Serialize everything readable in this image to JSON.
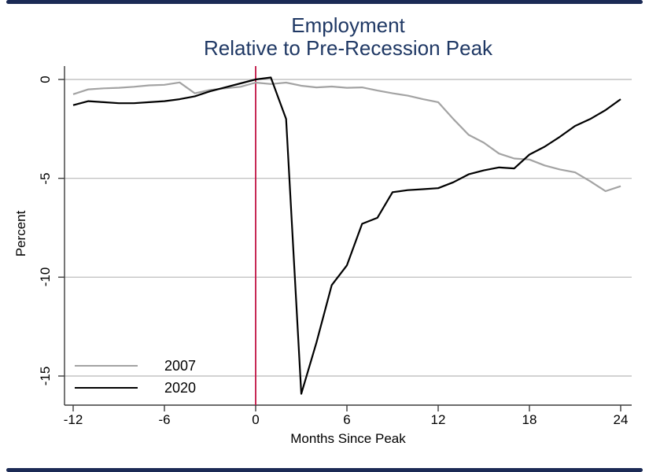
{
  "figure": {
    "title_line1": "Employment",
    "title_line2": "Relative to Pre-Recession Peak",
    "title_color": "#1F3864",
    "border_color": "#1B2A55",
    "background": "#FFFFFF"
  },
  "axes": {
    "x": {
      "label": "Months Since Peak",
      "tick_labels": [
        "-12",
        "-6",
        "0",
        "6",
        "12",
        "18",
        "24"
      ]
    },
    "y": {
      "label": "Percent",
      "tick_labels": [
        "0",
        "-5",
        "-10",
        "-15"
      ]
    }
  },
  "legend": {
    "items": [
      {
        "label": "2007",
        "color": "#A3A3A3"
      },
      {
        "label": "2020",
        "color": "#000000"
      }
    ]
  },
  "colors": {
    "gridline": "#B8B8B8",
    "axis": "#3C3C3C",
    "reference_line": "#C11243"
  },
  "chart_data": {
    "type": "line",
    "title": "Employment Relative to Pre-Recession Peak",
    "xlabel": "Months Since Peak",
    "ylabel": "Percent",
    "xlim": [
      -12.6,
      24.8
    ],
    "ylim": [
      -16.6,
      0.65
    ],
    "xticks": [
      -12,
      -6,
      0,
      6,
      12,
      18,
      24
    ],
    "yticks": [
      0,
      -5,
      -10,
      -15
    ],
    "grid": "horizontal",
    "legend_position": "bottom-left",
    "reference_line_x": 0,
    "x": [
      -12,
      -11,
      -10,
      -9,
      -8,
      -7,
      -6,
      -5,
      -4,
      -3,
      -2,
      -1,
      0,
      1,
      2,
      3,
      4,
      5,
      6,
      7,
      8,
      9,
      10,
      11,
      12,
      13,
      14,
      15,
      16,
      17,
      18,
      19,
      20,
      21,
      22,
      23,
      24
    ],
    "series": [
      {
        "name": "2007",
        "color": "#A3A3A3",
        "values": [
          -0.75,
          -0.5,
          -0.45,
          -0.42,
          -0.37,
          -0.3,
          -0.27,
          -0.15,
          -0.7,
          -0.53,
          -0.45,
          -0.37,
          -0.16,
          -0.23,
          -0.16,
          -0.32,
          -0.4,
          -0.36,
          -0.42,
          -0.4,
          -0.56,
          -0.7,
          -0.82,
          -1.0,
          -1.15,
          -2.0,
          -2.8,
          -3.2,
          -3.75,
          -4.0,
          -4.05,
          -4.35,
          -4.55,
          -4.7,
          -5.15,
          -5.65,
          -5.4
        ]
      },
      {
        "name": "2020",
        "color": "#000000",
        "values": [
          -1.3,
          -1.1,
          -1.15,
          -1.2,
          -1.2,
          -1.15,
          -1.1,
          -1.0,
          -0.85,
          -0.6,
          -0.4,
          -0.2,
          0.0,
          0.1,
          -2.0,
          -15.9,
          -13.3,
          -10.4,
          -9.4,
          -7.3,
          -7.0,
          -5.7,
          -5.6,
          -5.55,
          -5.5,
          -5.2,
          -4.8,
          -4.6,
          -4.45,
          -4.5,
          -3.8,
          -3.4,
          -2.9,
          -2.35,
          -2.0,
          -1.55,
          -1.0
        ]
      }
    ]
  }
}
